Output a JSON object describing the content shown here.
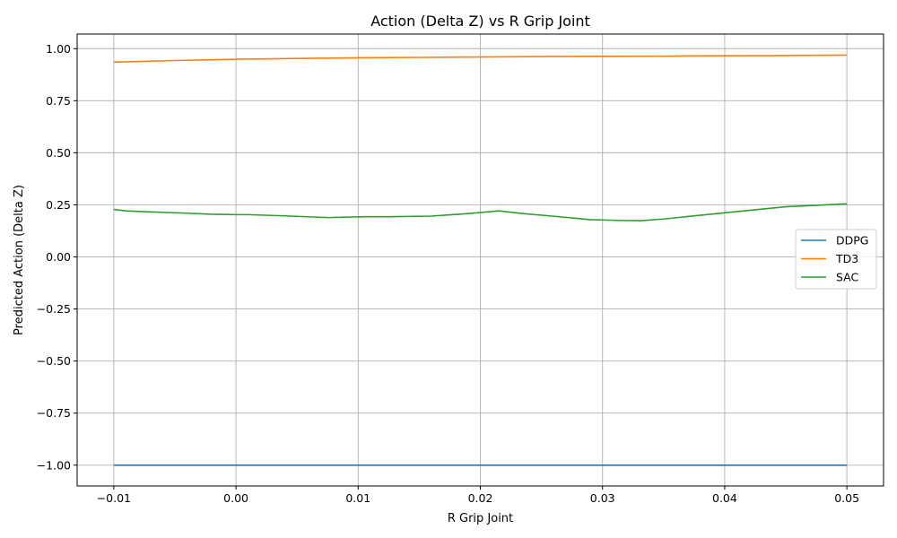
{
  "chart_data": {
    "type": "line",
    "title": "Action (Delta Z) vs R Grip Joint",
    "xlabel": "R Grip Joint",
    "ylabel": "Predicted Action (Delta Z)",
    "xlim": [
      -0.013,
      0.053
    ],
    "ylim": [
      -1.1,
      1.07
    ],
    "xticks": [
      -0.01,
      0.0,
      0.01,
      0.02,
      0.03,
      0.04,
      0.05
    ],
    "xtick_labels": [
      "−0.01",
      "0.00",
      "0.01",
      "0.02",
      "0.03",
      "0.04",
      "0.05"
    ],
    "yticks": [
      -1.0,
      -0.75,
      -0.5,
      -0.25,
      0.0,
      0.25,
      0.5,
      0.75,
      1.0
    ],
    "ytick_labels": [
      "−1.00",
      "−0.75",
      "−0.50",
      "−0.25",
      "0.00",
      "0.25",
      "0.50",
      "0.75",
      "1.00"
    ],
    "grid": true,
    "legend_position": "center-right",
    "series": [
      {
        "name": "DDPG",
        "color": "#1f77b4",
        "x": [
          -0.01,
          0.0,
          0.01,
          0.02,
          0.03,
          0.04,
          0.05
        ],
        "y": [
          -1.0,
          -1.0,
          -1.0,
          -1.0,
          -1.0,
          -1.0,
          -1.0
        ]
      },
      {
        "name": "TD3",
        "color": "#ff7f0e",
        "x": [
          -0.01,
          -0.005,
          0.0,
          0.005,
          0.01,
          0.015,
          0.02,
          0.025,
          0.03,
          0.035,
          0.04,
          0.045,
          0.05
        ],
        "y": [
          0.935,
          0.943,
          0.949,
          0.953,
          0.956,
          0.958,
          0.96,
          0.962,
          0.963,
          0.964,
          0.966,
          0.967,
          0.969
        ]
      },
      {
        "name": "SAC",
        "color": "#2ca02c",
        "x": [
          -0.01,
          -0.009,
          -0.007,
          -0.004,
          -0.002,
          0.0,
          0.001,
          0.004,
          0.0075,
          0.0105,
          0.0125,
          0.016,
          0.019,
          0.0215,
          0.0235,
          0.027,
          0.029,
          0.0315,
          0.0332,
          0.035,
          0.04,
          0.045,
          0.0475,
          0.05
        ],
        "y": [
          0.228,
          0.221,
          0.216,
          0.21,
          0.205,
          0.203,
          0.203,
          0.197,
          0.189,
          0.193,
          0.193,
          0.196,
          0.208,
          0.221,
          0.208,
          0.19,
          0.179,
          0.175,
          0.174,
          0.182,
          0.212,
          0.241,
          0.248,
          0.255
        ]
      }
    ]
  }
}
